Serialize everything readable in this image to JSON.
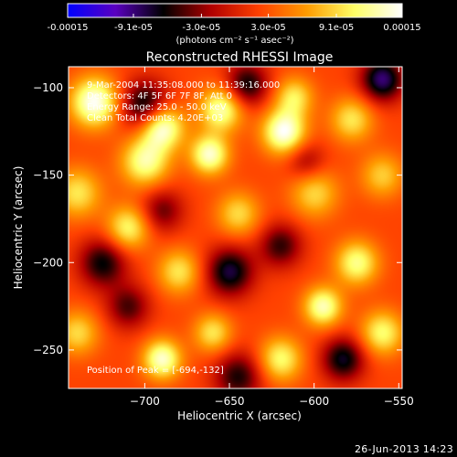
{
  "colorbar": {
    "tick_labels": [
      "-0.00015",
      "-9.1e-05",
      "-3.0e-05",
      "3.0e-05",
      "9.1e-05",
      "0.00015"
    ],
    "tick_values": [
      -0.00015,
      -9.1e-05,
      -3e-05,
      3e-05,
      9.1e-05,
      0.00015
    ],
    "range": [
      -0.00015,
      0.00015
    ],
    "units": "(photons cm⁻² s⁻¹ asec⁻²)",
    "stops": [
      "#0000ff",
      "#5a00c0",
      "#000000",
      "#b00000",
      "#ff4000",
      "#ff9b00",
      "#ffff66",
      "#ffffff"
    ]
  },
  "chart_data": {
    "type": "heatmap",
    "title": "Reconstructed RHESSI Image",
    "xlabel": "Heliocentric X (arcsec)",
    "ylabel": "Heliocentric Y (arcsec)",
    "xlim": [
      -745,
      -548
    ],
    "ylim": [
      -272,
      -88
    ],
    "xticks": [
      -700,
      -650,
      -600,
      -550
    ],
    "xtick_labels": [
      "−700",
      "−650",
      "−600",
      "−550"
    ],
    "yticks": [
      -100,
      -150,
      -200,
      -250
    ],
    "ytick_labels": [
      "−100",
      "−150",
      "−200",
      "−250"
    ],
    "annotations": {
      "time_range": "9-Mar-2004 11:35:08.000 to 11:39:16.000",
      "detectors": "Detectors: 4F 5F 6F 7F 8F, Att 0",
      "energy": "Energy Range: 25.0 - 50.0 keV",
      "clean": "Clean    Total Counts: 4.20E+03",
      "peak": "Position of Peak = [-694,-132]"
    },
    "peak_position": [
      -694,
      -132
    ],
    "blobs": [
      {
        "x": -730,
        "y": -108,
        "amp": 1.0,
        "s": 10
      },
      {
        "x": -690,
        "y": -122,
        "amp": 1.0,
        "s": 9
      },
      {
        "x": -700,
        "y": -142,
        "amp": 0.8,
        "s": 10
      },
      {
        "x": -655,
        "y": -112,
        "amp": 0.85,
        "s": 9
      },
      {
        "x": -662,
        "y": -138,
        "amp": 0.9,
        "s": 8
      },
      {
        "x": -618,
        "y": -125,
        "amp": 1.0,
        "s": 9
      },
      {
        "x": -612,
        "y": -105,
        "amp": 0.6,
        "s": 8
      },
      {
        "x": -578,
        "y": -118,
        "amp": 0.6,
        "s": 9
      },
      {
        "x": -560,
        "y": -150,
        "amp": 0.5,
        "s": 9
      },
      {
        "x": -740,
        "y": -160,
        "amp": 0.6,
        "s": 10
      },
      {
        "x": -710,
        "y": -180,
        "amp": 0.7,
        "s": 9
      },
      {
        "x": -680,
        "y": -205,
        "amp": 0.6,
        "s": 9
      },
      {
        "x": -645,
        "y": -172,
        "amp": 0.55,
        "s": 9
      },
      {
        "x": -600,
        "y": -160,
        "amp": 0.55,
        "s": 10
      },
      {
        "x": -575,
        "y": -200,
        "amp": 0.75,
        "s": 9
      },
      {
        "x": -595,
        "y": -225,
        "amp": 0.85,
        "s": 8
      },
      {
        "x": -560,
        "y": -240,
        "amp": 0.7,
        "s": 9
      },
      {
        "x": -620,
        "y": -255,
        "amp": 0.7,
        "s": 9
      },
      {
        "x": -690,
        "y": -255,
        "amp": 0.9,
        "s": 8
      },
      {
        "x": -740,
        "y": -240,
        "amp": 0.55,
        "s": 9
      },
      {
        "x": -660,
        "y": -240,
        "amp": 0.6,
        "s": 8
      },
      {
        "x": -700,
        "y": -110,
        "amp": -0.8,
        "s": 10
      },
      {
        "x": -640,
        "y": -98,
        "amp": -0.7,
        "s": 9
      },
      {
        "x": -725,
        "y": -200,
        "amp": -0.7,
        "s": 10
      },
      {
        "x": -690,
        "y": -170,
        "amp": -0.5,
        "s": 9
      },
      {
        "x": -650,
        "y": -205,
        "amp": -0.8,
        "s": 10
      },
      {
        "x": -620,
        "y": -190,
        "amp": -0.6,
        "s": 9
      },
      {
        "x": -560,
        "y": -95,
        "amp": -0.9,
        "s": 9
      },
      {
        "x": -583,
        "y": -255,
        "amp": -0.75,
        "s": 9
      },
      {
        "x": -645,
        "y": -265,
        "amp": -0.65,
        "s": 10
      },
      {
        "x": -710,
        "y": -225,
        "amp": -0.55,
        "s": 9
      },
      {
        "x": -605,
        "y": -142,
        "amp": -0.4,
        "s": 8
      }
    ]
  },
  "footer": {
    "date": "26-Jun-2013 14:23"
  }
}
